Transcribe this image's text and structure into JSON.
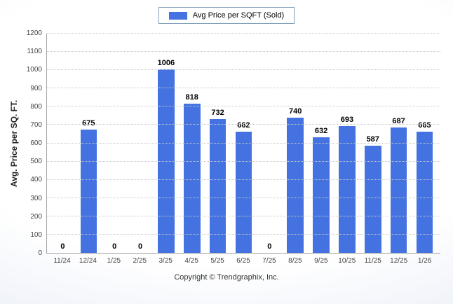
{
  "legend": {
    "label": "Avg Price per SQFT (Sold)"
  },
  "footer": {
    "copyright": "Copyright © Trendgraphix, Inc."
  },
  "colors": {
    "bar": "#4473e1",
    "bar_border": "#2d5fd3",
    "grid": "#c8c8c8",
    "axis": "#a6a6a6",
    "legend_border": "#7f9db9"
  },
  "chart_data": {
    "type": "bar",
    "title": "",
    "legend": [
      "Avg Price per SQFT (Sold)"
    ],
    "categories": [
      "11/24",
      "12/24",
      "1/25",
      "2/25",
      "3/25",
      "4/25",
      "5/25",
      "6/25",
      "7/25",
      "8/25",
      "9/25",
      "10/25",
      "11/25",
      "12/25",
      "1/26"
    ],
    "values": [
      0,
      675,
      0,
      0,
      1006,
      818,
      732,
      662,
      0,
      740,
      632,
      693,
      587,
      687,
      665
    ],
    "xlabel": "",
    "ylabel": "Avg. Price per SQ. FT.",
    "ylim": [
      0,
      1200
    ],
    "ytick_step": 100,
    "grid": true,
    "legend_position": "top",
    "value_labels": true
  }
}
